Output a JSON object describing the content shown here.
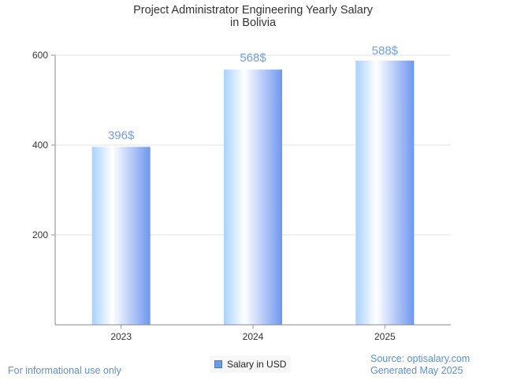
{
  "title_line1": "Project Administrator Engineering Yearly Salary",
  "title_line2": "in Bolivia",
  "chart_data": {
    "type": "bar",
    "categories": [
      "2023",
      "2024",
      "2025"
    ],
    "values": [
      396,
      568,
      588
    ],
    "value_labels": [
      "396$",
      "568$",
      "588$"
    ],
    "yticks": [
      200,
      400,
      600
    ],
    "ylim": [
      0,
      600
    ],
    "grid": true,
    "series": [
      {
        "name": "Salary in USD",
        "values": [
          396,
          568,
          588
        ]
      }
    ],
    "legend_position": "bottom-center"
  },
  "colors": {
    "bar_light": "#ffffff",
    "bar_mid": "#a8d2ff",
    "bar_dark": "#6f97f0",
    "value_label": "#6f9fe6",
    "footer_text": "#5b8fd6"
  },
  "footer": {
    "left": "For informational use only",
    "source": "Source: optisalary.com",
    "generated": "Generated May 2025"
  },
  "legend": {
    "label": "Salary in USD"
  }
}
